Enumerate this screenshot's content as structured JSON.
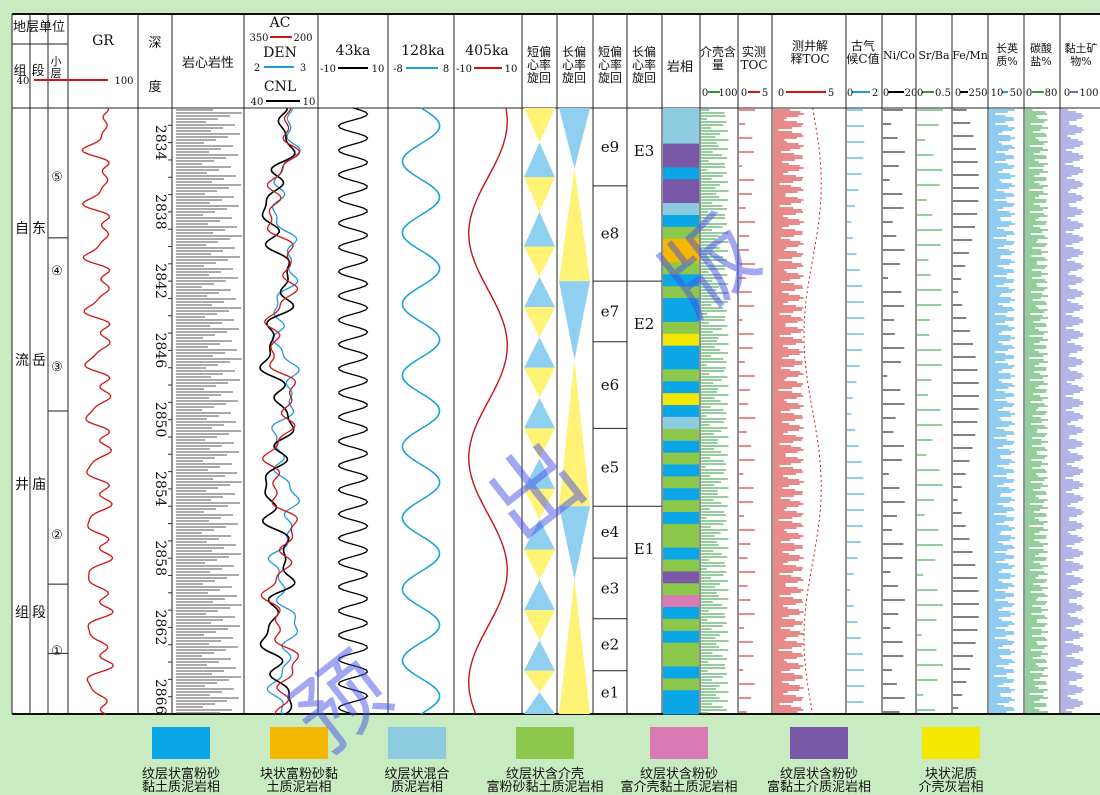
{
  "chart_data": {
    "type": "well-log-composite",
    "header": {
      "strat_unit": "地层单位",
      "formation": "组",
      "member": "段",
      "sublayer": "小层",
      "depth_unit": "深",
      "depth_unit2": "度",
      "lithology": "岩心岩性",
      "sequence": "岩相"
    },
    "columns": {
      "gr": {
        "label": "GR",
        "min": "40",
        "max": "100",
        "color": "#d21414"
      },
      "ac": {
        "label": "AC",
        "min": "350",
        "max": "200",
        "color": "#d21414"
      },
      "den": {
        "label": "DEN",
        "min": "2",
        "max": "3",
        "color": "#1e9be0"
      },
      "cnl": {
        "label": "CNL",
        "min": "40",
        "max": "10",
        "color": "#000000"
      },
      "c43": {
        "label": "43ka",
        "min": "-10",
        "max": "10",
        "color": "#000000"
      },
      "c128": {
        "label": "128ka",
        "min": "-8",
        "max": "8",
        "color": "#1aa3d6"
      },
      "c405": {
        "label": "405ka",
        "min": "-10",
        "max": "10",
        "color": "#c81414"
      },
      "short_ecc": {
        "label": "短偏心率旋回"
      },
      "long_ecc": {
        "label": "长偏心率旋回"
      },
      "short_ecc2": {
        "label": "短偏心率旋回"
      },
      "long_ecc2": {
        "label": "长偏心率旋回"
      },
      "shell": {
        "label": "介壳含量",
        "min": "0",
        "max": "100"
      },
      "toc_meas": {
        "label": "实测TOC",
        "min": "0",
        "max": "5"
      },
      "toc_log": {
        "label": "测井解释TOC",
        "min": "0",
        "max": "5"
      },
      "paleo": {
        "label": "古气候C值",
        "min": "0",
        "max": "2"
      },
      "nico": {
        "label": "Ni/Co",
        "min": "0",
        "max": "20"
      },
      "srba": {
        "label": "Sr/Ba",
        "min": "0",
        "max": "0.5"
      },
      "femn": {
        "label": "Fe/Mn",
        "min": "0",
        "max": "250"
      },
      "quartz": {
        "label": "长英质%",
        "min": "10",
        "max": "50"
      },
      "carb": {
        "label": "碳酸盐%",
        "min": "0",
        "max": "80"
      },
      "clay": {
        "label": "黏土矿物%",
        "min": "0",
        "max": "100"
      }
    },
    "strat": {
      "formation_name": [
        "自",
        "流",
        "井",
        "组"
      ],
      "member_name": [
        "东",
        "岳",
        "庙",
        "段"
      ],
      "sublayers": [
        "⑤",
        "④",
        "③",
        "②",
        "①"
      ]
    },
    "depth": {
      "min": 2832,
      "max": 2867,
      "ticks": [
        2834,
        2838,
        2842,
        2846,
        2850,
        2854,
        2858,
        2862,
        2866
      ]
    },
    "short_cycles": [
      {
        "label": "e9",
        "top": 2832,
        "base": 2836.5
      },
      {
        "label": "e8",
        "top": 2836.5,
        "base": 2842
      },
      {
        "label": "e7",
        "top": 2842,
        "base": 2845.5
      },
      {
        "label": "e6",
        "top": 2845.5,
        "base": 2850.5
      },
      {
        "label": "e5",
        "top": 2850.5,
        "base": 2855
      },
      {
        "label": "e4",
        "top": 2855,
        "base": 2858
      },
      {
        "label": "e3",
        "top": 2858,
        "base": 2861.5
      },
      {
        "label": "e2",
        "top": 2861.5,
        "base": 2864.5
      },
      {
        "label": "e1",
        "top": 2864.5,
        "base": 2867
      }
    ],
    "long_cycles": [
      {
        "label": "E3",
        "top": 2832,
        "base": 2842
      },
      {
        "label": "E2",
        "top": 2842,
        "base": 2855
      },
      {
        "label": "E1",
        "top": 2855,
        "base": 2867
      }
    ],
    "facies_legend": [
      {
        "name": "纹层状富粉砂黏土质泥岩相",
        "line1": "纹层状富粉砂",
        "line2": "黏土质泥岩相",
        "color": "#0aa6e6"
      },
      {
        "name": "块状富粉砂黏土质泥岩相",
        "line1": "块状富粉砂黏",
        "line2": "土质泥岩相",
        "color": "#f5b800"
      },
      {
        "name": "纹层状混合质泥岩相",
        "line1": "纹层状混合",
        "line2": "质泥岩相",
        "color": "#8ccbe0"
      },
      {
        "name": "纹层状含介壳富粉砂黏土质泥岩相",
        "line1": "纹层状含介壳",
        "line2": "富粉砂黏土质泥岩相",
        "color": "#8cc84b"
      },
      {
        "name": "纹层状含粉砂富介壳黏土质泥岩相",
        "line1": "纹层状含粉砂",
        "line2": "富介壳黏土质泥岩相",
        "color": "#d97ab4"
      },
      {
        "name": "纹层状含粉砂富黏土介质泥岩相",
        "line1": "纹层状含粉砂",
        "line2": "富黏土介质泥岩相",
        "color": "#7a58a8"
      },
      {
        "name": "块状泥质介壳灰岩相",
        "line1": "块状泥质",
        "line2": "介壳灰岩相",
        "color": "#f5e800"
      }
    ],
    "watermark": [
      "预",
      "出",
      "版"
    ]
  }
}
